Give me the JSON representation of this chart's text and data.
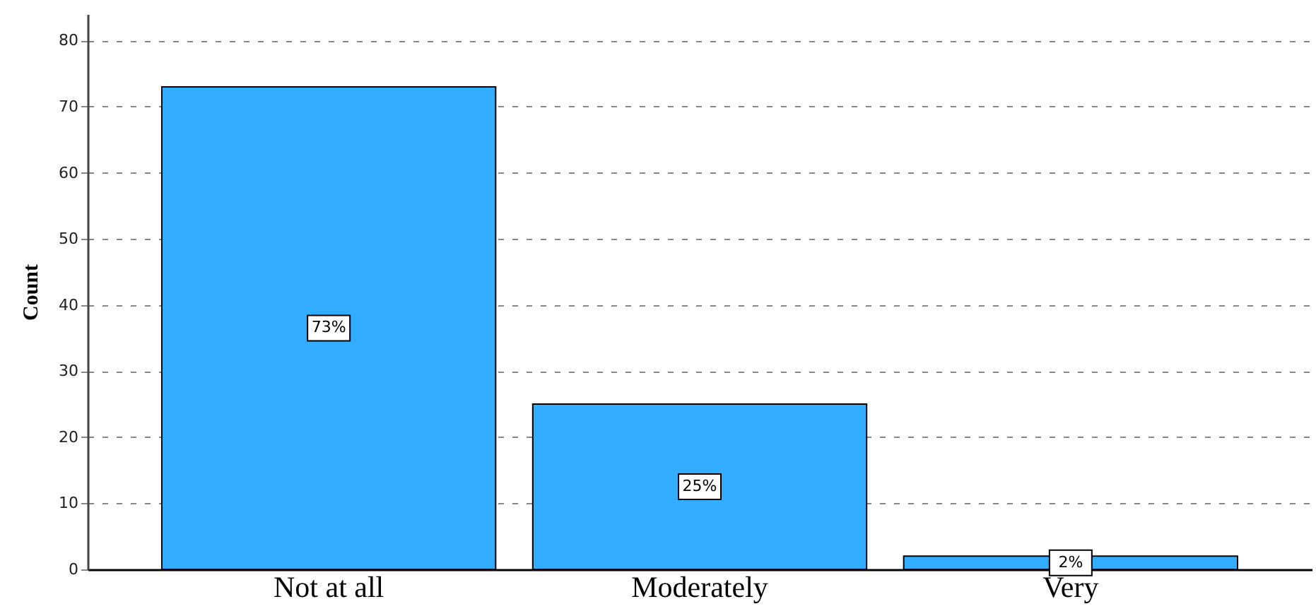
{
  "chart_data": {
    "type": "bar",
    "ylabel": "Count",
    "categories": [
      "Not at all",
      "Moderately",
      "Very"
    ],
    "values": [
      73,
      25,
      2
    ],
    "value_labels": [
      "73%",
      "25%",
      "2%"
    ],
    "color": "#33adff",
    "ylim": [
      0,
      84
    ],
    "yticks": [
      0,
      10,
      20,
      30,
      40,
      50,
      60,
      70,
      80
    ],
    "grid": "y"
  }
}
